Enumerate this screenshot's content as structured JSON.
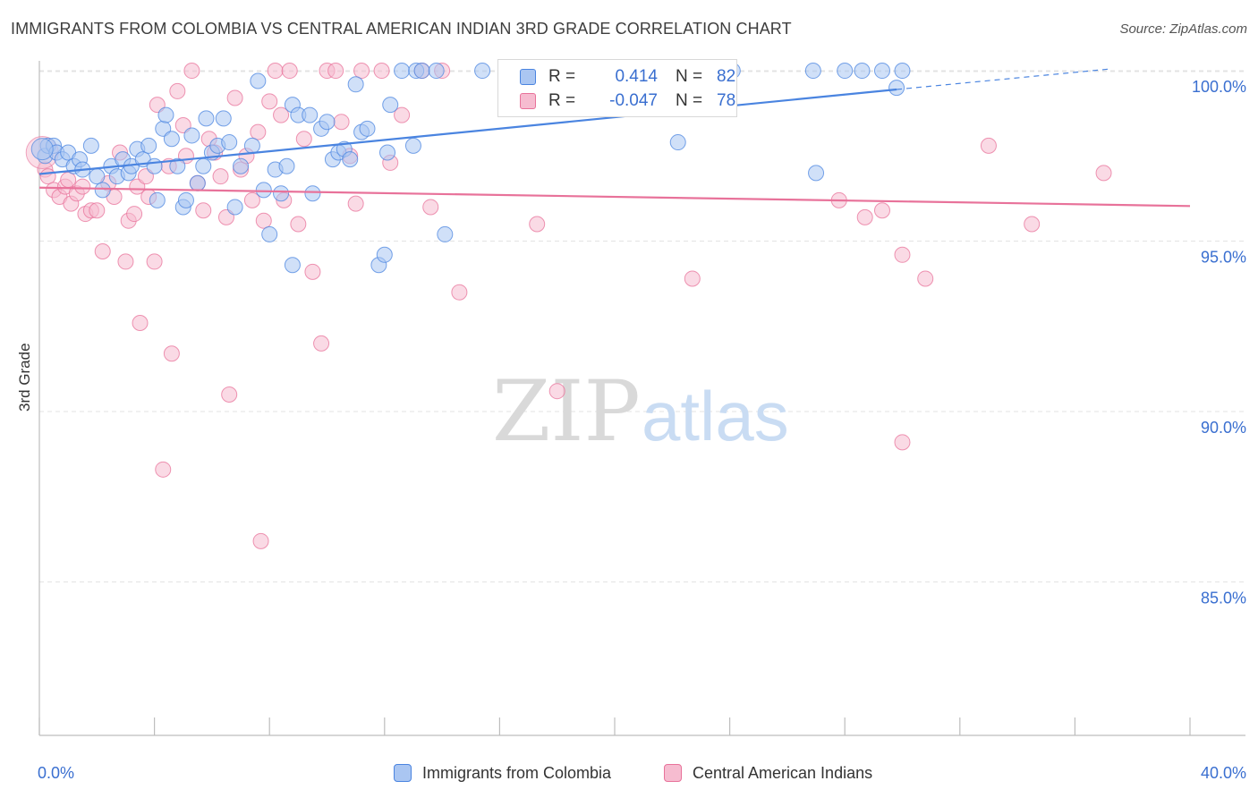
{
  "title": "IMMIGRANTS FROM COLOMBIA VS CENTRAL AMERICAN INDIAN 3RD GRADE CORRELATION CHART",
  "source": "Source: ZipAtlas.com",
  "watermark": {
    "zip": "ZIP",
    "atlas": "atlas"
  },
  "colors": {
    "blue": "#4a84e0",
    "blue_fill": "#aac6f2",
    "pink": "#e8729a",
    "pink_fill": "#f6bcd0",
    "tick_text": "#3a6fd0"
  },
  "legend": {
    "r_label": "R =",
    "n_label": "N =",
    "blue": {
      "r": "0.414",
      "n": "82"
    },
    "pink": {
      "r": "-0.047",
      "n": "78"
    }
  },
  "chart_data": {
    "type": "scatter",
    "title": "IMMIGRANTS FROM COLOMBIA VS CENTRAL AMERICAN INDIAN 3RD GRADE CORRELATION CHART",
    "xlabel": "",
    "ylabel": "3rd Grade",
    "xlim": [
      0,
      40
    ],
    "ylim": [
      80.5,
      100.5
    ],
    "x_tick_labels": [
      "0.0%",
      "40.0%"
    ],
    "y_ticks": [
      100,
      95,
      90,
      85
    ],
    "y_tick_labels": [
      "100.0%",
      "95.0%",
      "90.0%",
      "85.0%"
    ],
    "grid": "horizontal dashed",
    "legend_position": "top-center",
    "series": [
      {
        "name": "Immigrants from Colombia",
        "color": "#4a84e0",
        "R": 0.414,
        "N": 82,
        "trend": {
          "x": [
            0,
            29.8
          ],
          "y": [
            96.97,
            99.45
          ],
          "dashed_to": [
            37.2,
            100.05
          ]
        },
        "points": [
          [
            0.2,
            97.5
          ],
          [
            0.3,
            97.8
          ],
          [
            0.5,
            97.8
          ],
          [
            0.6,
            97.6
          ],
          [
            0.8,
            97.4
          ],
          [
            1.0,
            97.6
          ],
          [
            1.2,
            97.2
          ],
          [
            1.4,
            97.4
          ],
          [
            1.5,
            97.1
          ],
          [
            1.8,
            97.8
          ],
          [
            2.0,
            96.9
          ],
          [
            2.2,
            96.5
          ],
          [
            2.5,
            97.2
          ],
          [
            2.7,
            96.9
          ],
          [
            2.9,
            97.4
          ],
          [
            3.1,
            97.0
          ],
          [
            3.2,
            97.2
          ],
          [
            3.4,
            97.7
          ],
          [
            3.6,
            97.4
          ],
          [
            3.8,
            97.8
          ],
          [
            4.0,
            97.2
          ],
          [
            4.1,
            96.2
          ],
          [
            4.3,
            98.3
          ],
          [
            4.4,
            98.7
          ],
          [
            4.6,
            98.0
          ],
          [
            4.8,
            97.2
          ],
          [
            5.0,
            96.0
          ],
          [
            5.1,
            96.2
          ],
          [
            5.3,
            98.1
          ],
          [
            5.5,
            96.7
          ],
          [
            5.7,
            97.2
          ],
          [
            5.8,
            98.6
          ],
          [
            6.0,
            97.6
          ],
          [
            6.2,
            97.8
          ],
          [
            6.4,
            98.6
          ],
          [
            6.6,
            97.9
          ],
          [
            6.8,
            96.0
          ],
          [
            7.0,
            97.2
          ],
          [
            7.4,
            97.8
          ],
          [
            7.6,
            99.7
          ],
          [
            7.8,
            96.5
          ],
          [
            8.0,
            95.2
          ],
          [
            8.2,
            97.1
          ],
          [
            8.4,
            96.4
          ],
          [
            8.6,
            97.2
          ],
          [
            8.8,
            99.0
          ],
          [
            8.8,
            94.3
          ],
          [
            9.0,
            98.7
          ],
          [
            9.4,
            98.7
          ],
          [
            9.5,
            96.4
          ],
          [
            9.8,
            98.3
          ],
          [
            10.0,
            98.5
          ],
          [
            10.2,
            97.4
          ],
          [
            10.4,
            97.6
          ],
          [
            10.6,
            97.7
          ],
          [
            10.8,
            97.4
          ],
          [
            11.0,
            99.6
          ],
          [
            11.2,
            98.2
          ],
          [
            11.4,
            98.3
          ],
          [
            11.8,
            94.3
          ],
          [
            12.0,
            94.6
          ],
          [
            12.1,
            97.6
          ],
          [
            12.2,
            99.0
          ],
          [
            12.6,
            100.0
          ],
          [
            13.0,
            97.8
          ],
          [
            13.1,
            100.0
          ],
          [
            13.3,
            100.0
          ],
          [
            13.8,
            100.0
          ],
          [
            14.1,
            95.2
          ],
          [
            15.4,
            100.0
          ],
          [
            17.1,
            100.0
          ],
          [
            17.5,
            100.0
          ],
          [
            20.8,
            100.0
          ],
          [
            22.2,
            97.9
          ],
          [
            24.1,
            100.0
          ],
          [
            26.9,
            100.0
          ],
          [
            27.0,
            97.0
          ],
          [
            28.0,
            100.0
          ],
          [
            28.6,
            100.0
          ],
          [
            29.3,
            100.0
          ],
          [
            29.8,
            99.5
          ],
          [
            30.0,
            100.0
          ]
        ]
      },
      {
        "name": "Central American Indians",
        "color": "#e8729a",
        "R": -0.047,
        "N": 78,
        "trend": {
          "x": [
            0,
            40
          ],
          "y": [
            96.57,
            96.03
          ]
        },
        "points": [
          [
            0.2,
            97.1
          ],
          [
            0.3,
            96.9
          ],
          [
            0.5,
            96.5
          ],
          [
            0.7,
            96.3
          ],
          [
            0.9,
            96.6
          ],
          [
            1.0,
            96.8
          ],
          [
            1.1,
            96.1
          ],
          [
            1.3,
            96.4
          ],
          [
            1.5,
            96.6
          ],
          [
            1.6,
            95.8
          ],
          [
            1.8,
            95.9
          ],
          [
            2.0,
            95.9
          ],
          [
            2.2,
            94.7
          ],
          [
            2.4,
            96.7
          ],
          [
            2.6,
            96.3
          ],
          [
            2.8,
            97.6
          ],
          [
            3.0,
            94.4
          ],
          [
            3.1,
            95.6
          ],
          [
            3.3,
            95.8
          ],
          [
            3.4,
            96.6
          ],
          [
            3.5,
            92.6
          ],
          [
            3.7,
            96.9
          ],
          [
            3.8,
            96.3
          ],
          [
            4.0,
            94.4
          ],
          [
            4.1,
            99.0
          ],
          [
            4.3,
            88.3
          ],
          [
            4.5,
            97.2
          ],
          [
            4.6,
            91.7
          ],
          [
            4.8,
            99.4
          ],
          [
            5.0,
            98.4
          ],
          [
            5.1,
            97.5
          ],
          [
            5.3,
            100.0
          ],
          [
            5.5,
            96.7
          ],
          [
            5.7,
            95.9
          ],
          [
            5.9,
            98.0
          ],
          [
            6.1,
            97.6
          ],
          [
            6.3,
            96.9
          ],
          [
            6.5,
            95.7
          ],
          [
            6.6,
            90.5
          ],
          [
            6.8,
            99.2
          ],
          [
            7.0,
            97.1
          ],
          [
            7.2,
            97.5
          ],
          [
            7.4,
            96.2
          ],
          [
            7.6,
            98.2
          ],
          [
            7.7,
            86.2
          ],
          [
            7.8,
            95.6
          ],
          [
            8.0,
            99.1
          ],
          [
            8.2,
            100.0
          ],
          [
            8.4,
            98.7
          ],
          [
            8.5,
            96.2
          ],
          [
            8.7,
            100.0
          ],
          [
            9.0,
            95.5
          ],
          [
            9.2,
            98.0
          ],
          [
            9.5,
            94.1
          ],
          [
            9.8,
            92.0
          ],
          [
            10.0,
            100.0
          ],
          [
            10.3,
            100.0
          ],
          [
            10.5,
            98.5
          ],
          [
            10.8,
            97.5
          ],
          [
            11.0,
            96.1
          ],
          [
            11.2,
            100.0
          ],
          [
            11.9,
            100.0
          ],
          [
            12.2,
            97.3
          ],
          [
            12.6,
            98.7
          ],
          [
            13.3,
            100.0
          ],
          [
            13.6,
            96.0
          ],
          [
            14.0,
            100.0
          ],
          [
            14.6,
            93.5
          ],
          [
            17.3,
            95.5
          ],
          [
            18.0,
            90.6
          ],
          [
            22.7,
            93.9
          ],
          [
            27.8,
            96.2
          ],
          [
            28.7,
            95.7
          ],
          [
            29.3,
            95.9
          ],
          [
            30.0,
            94.6
          ],
          [
            30.0,
            89.1
          ],
          [
            30.8,
            93.9
          ],
          [
            33.0,
            97.8
          ],
          [
            34.5,
            95.5
          ],
          [
            37.0,
            97.0
          ]
        ]
      }
    ]
  },
  "bottom_legend": [
    "Immigrants from Colombia",
    "Central American Indians"
  ]
}
